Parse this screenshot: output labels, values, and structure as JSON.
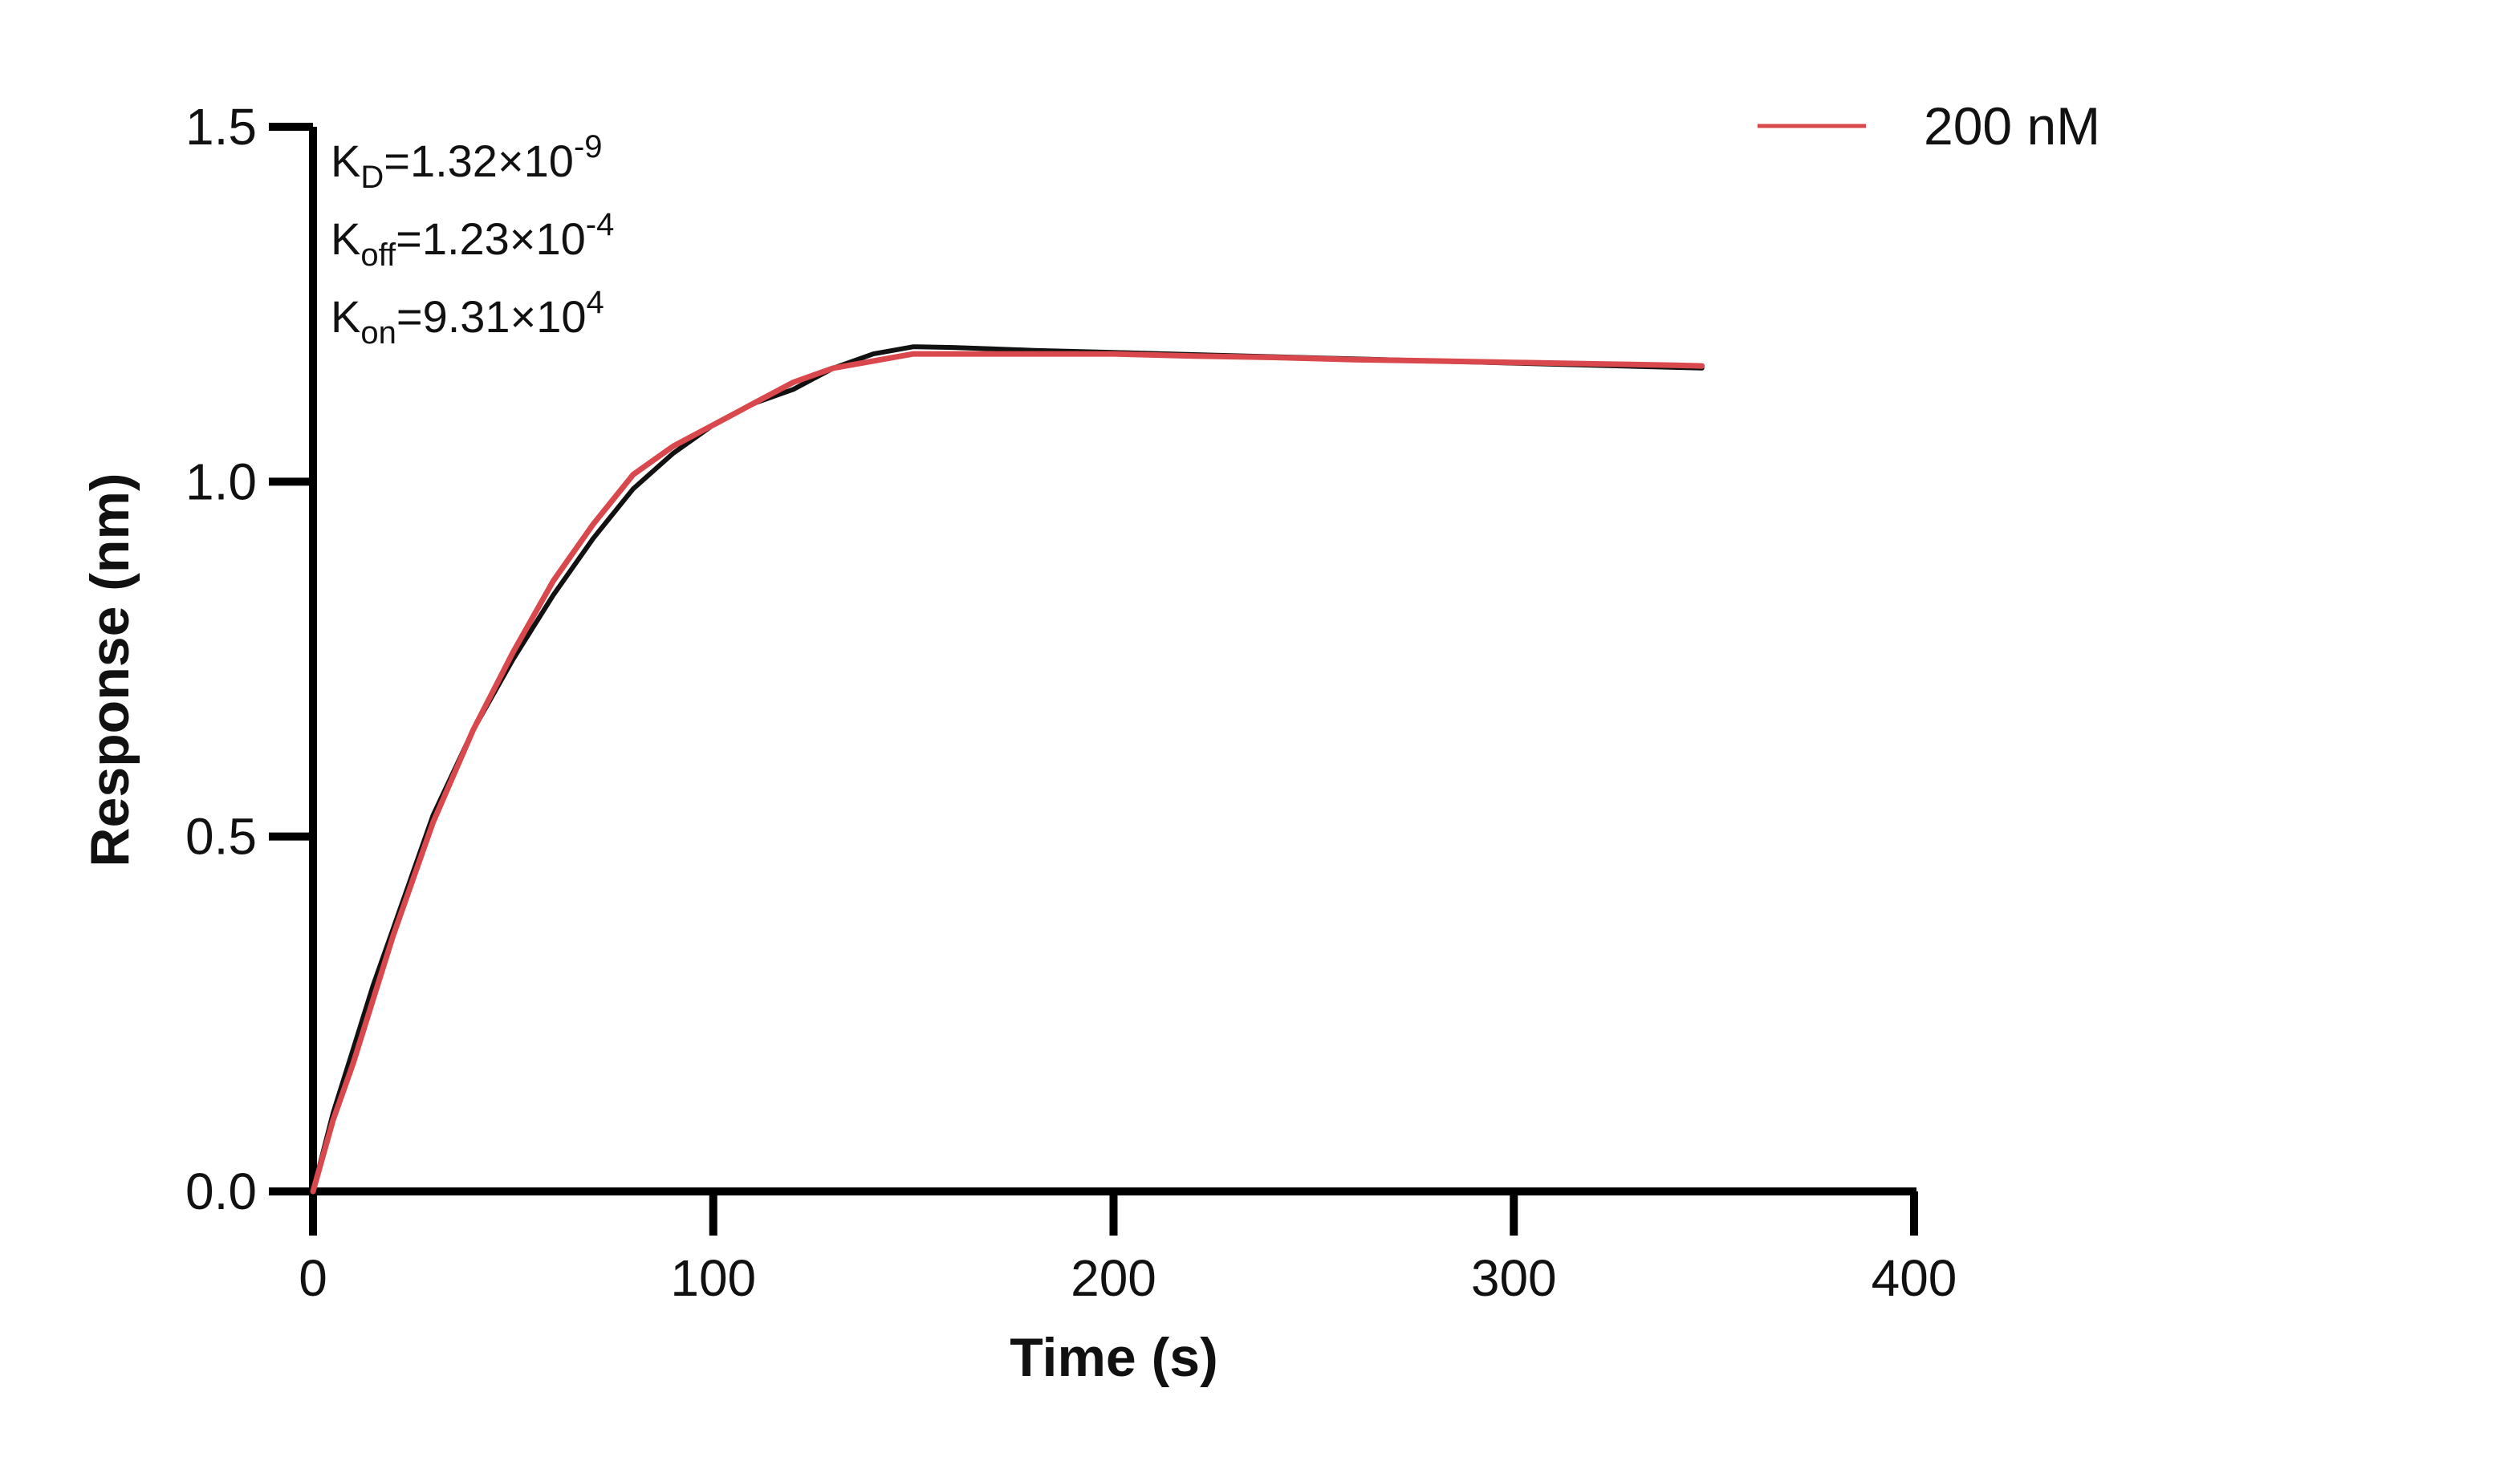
{
  "chart_data": {
    "type": "line",
    "xlabel": "Time (s)",
    "ylabel": "Response (nm)",
    "xlim": [
      0,
      400
    ],
    "ylim": [
      0,
      1.5
    ],
    "xticks": [
      "0",
      "100",
      "200",
      "300",
      "400"
    ],
    "yticks": [
      "0.0",
      "0.5",
      "1.0",
      "1.5"
    ],
    "grid": false,
    "legend_position": "top-right",
    "annotations": [
      {
        "main": "K",
        "sub": "D",
        "rest": "=1.32×10",
        "sup": "-9"
      },
      {
        "main": "K",
        "sub": "off",
        "rest": "=1.23×10",
        "sup": "-4"
      },
      {
        "main": "K",
        "sub": "on",
        "rest": "=9.31×10",
        "sup": "4"
      }
    ],
    "colors": {
      "measured": "#d9484c",
      "fit": "#111111",
      "axis": "#000000"
    },
    "series": [
      {
        "name": "200 nM",
        "role": "measured",
        "x": [
          0,
          5,
          10,
          15,
          20,
          25,
          30,
          40,
          50,
          60,
          70,
          80,
          90,
          100,
          110,
          120,
          130,
          140,
          150,
          160,
          170,
          180,
          200,
          220,
          240,
          260,
          280,
          300,
          320,
          340,
          347
        ],
        "y": [
          0.0,
          0.1,
          0.18,
          0.27,
          0.36,
          0.44,
          0.52,
          0.65,
          0.76,
          0.86,
          0.94,
          1.01,
          1.05,
          1.08,
          1.11,
          1.14,
          1.16,
          1.17,
          1.18,
          1.18,
          1.18,
          1.18,
          1.18,
          1.177,
          1.175,
          1.172,
          1.17,
          1.168,
          1.166,
          1.164,
          1.163
        ]
      },
      {
        "role": "fit",
        "x": [
          0,
          5,
          10,
          15,
          20,
          25,
          30,
          40,
          50,
          60,
          70,
          80,
          90,
          100,
          110,
          120,
          130,
          140,
          150,
          160,
          170,
          180,
          200,
          220,
          240,
          260,
          280,
          300,
          320,
          340,
          347
        ],
        "y": [
          0.0,
          0.11,
          0.2,
          0.29,
          0.37,
          0.45,
          0.53,
          0.65,
          0.75,
          0.84,
          0.92,
          0.99,
          1.04,
          1.08,
          1.11,
          1.13,
          1.16,
          1.18,
          1.19,
          1.189,
          1.187,
          1.185,
          1.182,
          1.179,
          1.176,
          1.173,
          1.17,
          1.167,
          1.164,
          1.161,
          1.16
        ]
      }
    ]
  }
}
